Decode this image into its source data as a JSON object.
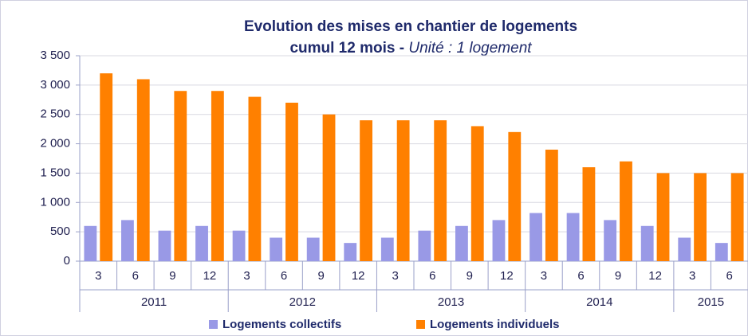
{
  "chart_data": {
    "type": "bar",
    "title": "Evolution des mises en chantier de logements",
    "subtitle": "cumul 12 mois -",
    "subtitle_unit": "Unité : 1 logement",
    "years": [
      {
        "label": "2011",
        "months": [
          "3",
          "6",
          "9",
          "12"
        ]
      },
      {
        "label": "2012",
        "months": [
          "3",
          "6",
          "9",
          "12"
        ]
      },
      {
        "label": "2013",
        "months": [
          "3",
          "6",
          "9",
          "12"
        ]
      },
      {
        "label": "2014",
        "months": [
          "3",
          "6",
          "9",
          "12"
        ]
      },
      {
        "label": "2015",
        "months": [
          "3",
          "6"
        ]
      }
    ],
    "series": [
      {
        "name": "Logements collectifs",
        "color": "#9999e6",
        "values": [
          600,
          700,
          520,
          600,
          520,
          400,
          400,
          310,
          400,
          520,
          600,
          700,
          820,
          820,
          700,
          600,
          400,
          310
        ]
      },
      {
        "name": "Logements individuels",
        "color": "#ff8000",
        "values": [
          3200,
          3100,
          2900,
          2900,
          2800,
          2700,
          2500,
          2400,
          2400,
          2400,
          2300,
          2200,
          1900,
          1600,
          1700,
          1500,
          1500,
          1500
        ]
      }
    ],
    "ylim": [
      0,
      3500
    ],
    "yticks": [
      0,
      500,
      {
        "value": 1000,
        "label": "1 000"
      },
      {
        "value": 1500,
        "label": "1 500"
      },
      {
        "value": 2000,
        "label": "2 000"
      },
      {
        "value": 2500,
        "label": "2 500"
      },
      {
        "value": 3000,
        "label": "3 000"
      },
      {
        "value": 3500,
        "label": "3 500"
      }
    ],
    "grid": true,
    "legend": "bottom"
  }
}
